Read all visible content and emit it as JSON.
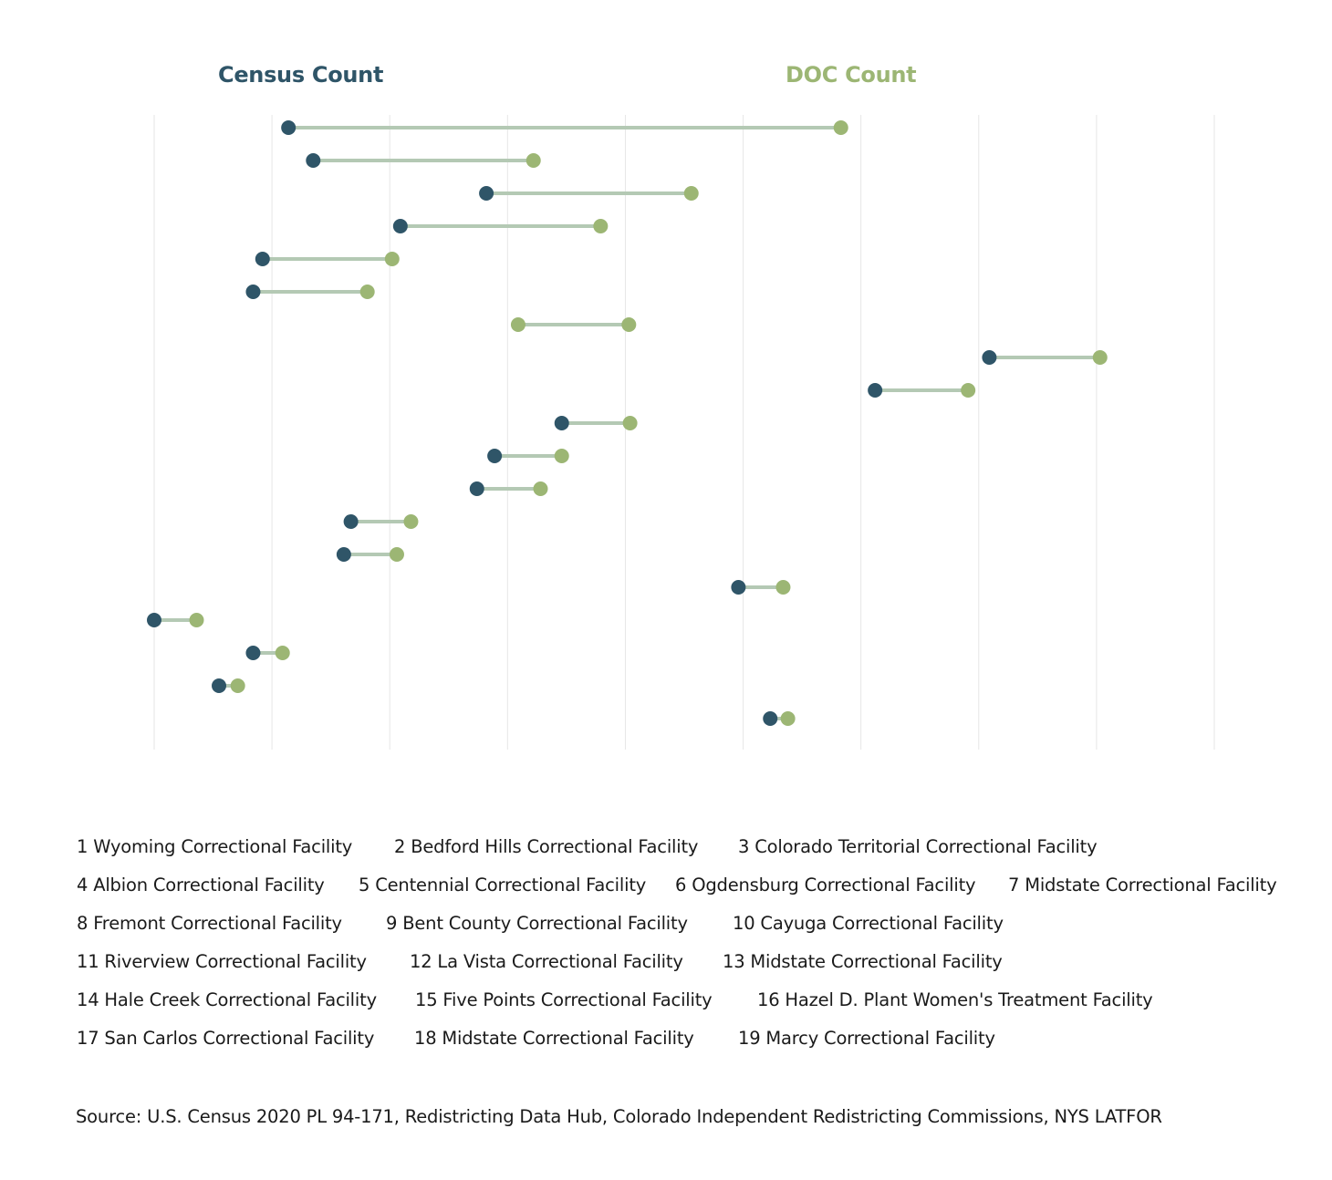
{
  "legend": {
    "census_label": "Census Count",
    "doc_label": "DOC Count"
  },
  "colors": {
    "census": "#2f5568",
    "doc": "#9cb674",
    "connector": "#b4c9b4",
    "grid": "#e6e6e6"
  },
  "chart_data": {
    "type": "dumbbell",
    "series": [
      {
        "name": "Census Count",
        "color": "#2f5568"
      },
      {
        "name": "DOC Count",
        "color": "#9cb674"
      }
    ],
    "grid": true,
    "x_axis_labels_shown": false,
    "x_gridline_count": 10,
    "x_domain": [
      0,
      9
    ],
    "points": [
      {
        "id": 1,
        "census": 1.14,
        "doc": 5.83
      },
      {
        "id": 2,
        "census": 1.35,
        "doc": 3.22
      },
      {
        "id": 3,
        "census": 2.82,
        "doc": 4.56
      },
      {
        "id": 4,
        "census": 2.09,
        "doc": 3.79
      },
      {
        "id": 5,
        "census": 0.92,
        "doc": 2.02
      },
      {
        "id": 6,
        "census": 0.84,
        "doc": 1.81
      },
      {
        "id": 7,
        "census": null,
        "doc_start": 3.09,
        "doc": 4.03
      },
      {
        "id": 8,
        "census": 7.09,
        "doc": 8.03
      },
      {
        "id": 9,
        "census": 6.12,
        "doc": 6.91
      },
      {
        "id": 10,
        "census": 3.46,
        "doc": 4.04
      },
      {
        "id": 11,
        "census": 2.89,
        "doc": 3.46
      },
      {
        "id": 12,
        "census": 2.74,
        "doc": 3.28
      },
      {
        "id": 13,
        "census": 1.67,
        "doc": 2.18
      },
      {
        "id": 14,
        "census": 1.61,
        "doc": 2.06
      },
      {
        "id": 15,
        "census": 4.96,
        "doc": 5.34
      },
      {
        "id": 16,
        "census": 0.0,
        "doc": 0.36
      },
      {
        "id": 17,
        "census": 0.84,
        "doc": 1.09
      },
      {
        "id": 18,
        "census": 0.55,
        "doc": 0.71
      },
      {
        "id": 19,
        "census": 5.23,
        "doc": 5.38
      }
    ]
  },
  "facility_list": [
    "1 Wyoming Correctional Facility",
    "2 Bedford Hills Correctional Facility",
    "3 Colorado Territorial Correctional Facility",
    "4 Albion Correctional Facility",
    "5 Centennial Correctional Facility",
    "6 Ogdensburg Correctional Facility",
    "7 Midstate Correctional Facility",
    "8 Fremont Correctional Facility",
    "9 Bent County Correctional Facility",
    "10 Cayuga Correctional Facility",
    "11 Riverview Correctional Facility",
    "12 La Vista Correctional Facility",
    "13 Midstate Correctional Facility",
    "14 Hale Creek Correctional Facility",
    "15 Five Points Correctional Facility",
    "16 Hazel D. Plant Women's Treatment Facility",
    "17 San Carlos Correctional Facility",
    "18 Midstate Correctional Facility",
    "19 Marcy Correctional Facility"
  ],
  "source": "Source: U.S. Census 2020 PL 94-171, Redistricting Data Hub, Colorado Independent Redistricting Commissions, NYS LATFOR"
}
